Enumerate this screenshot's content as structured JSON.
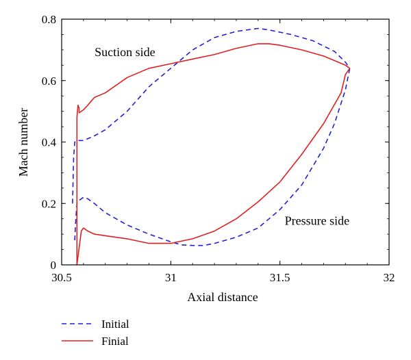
{
  "chart_data": {
    "type": "line",
    "xlabel": "Axial distance",
    "ylabel": "Mach number",
    "xlim": [
      30.5,
      32
    ],
    "ylim": [
      0,
      0.8
    ],
    "xticks": [
      30.5,
      31,
      31.5,
      32
    ],
    "xtick_labels": [
      "30.5",
      "31",
      "31.5",
      "32"
    ],
    "yticks": [
      0,
      0.2,
      0.4,
      0.6,
      0.8
    ],
    "ytick_labels": [
      "0",
      "0.2",
      "0.4",
      "0.6",
      "0.8"
    ],
    "grid": false,
    "legend_position": "bottom-left, below plot",
    "annotations": [
      {
        "text": "Suction side",
        "x": 30.79,
        "y": 0.68
      },
      {
        "text": "Pressure side",
        "x": 31.67,
        "y": 0.13
      }
    ],
    "series": [
      {
        "name": "Initial",
        "color": "#1f1fdc",
        "dash": "dashed",
        "segments": [
          {
            "x": [
              30.55,
              30.555,
              30.56,
              30.57,
              30.6,
              30.65,
              30.7,
              30.8,
              30.9,
              31.0,
              31.1,
              31.2,
              31.3,
              31.4,
              31.45,
              31.55,
              31.65,
              31.75,
              31.8,
              31.82
            ],
            "y": [
              0.2,
              0.35,
              0.4,
              0.405,
              0.405,
              0.42,
              0.44,
              0.5,
              0.58,
              0.64,
              0.7,
              0.74,
              0.76,
              0.77,
              0.765,
              0.75,
              0.73,
              0.695,
              0.66,
              0.64
            ]
          },
          {
            "x": [
              30.56,
              30.565,
              30.57,
              30.58,
              30.6,
              30.62,
              30.65,
              30.7,
              30.8,
              30.9,
              31.0,
              31.05,
              31.1,
              31.15,
              31.2,
              31.3,
              31.4,
              31.5,
              31.6,
              31.7,
              31.75,
              31.8,
              31.82
            ],
            "y": [
              0.08,
              0.15,
              0.2,
              0.21,
              0.22,
              0.215,
              0.2,
              0.17,
              0.13,
              0.1,
              0.075,
              0.065,
              0.063,
              0.063,
              0.07,
              0.09,
              0.12,
              0.18,
              0.26,
              0.38,
              0.46,
              0.57,
              0.64
            ]
          }
        ]
      },
      {
        "name": "Finial",
        "color": "#e0201f",
        "dash": "solid",
        "segments": [
          {
            "x": [
              30.57,
              30.57,
              30.575,
              30.58,
              30.58,
              30.6,
              30.62,
              30.65,
              30.7,
              30.8,
              30.9,
              31.0,
              31.1,
              31.2,
              31.3,
              31.4,
              31.45,
              31.5,
              31.6,
              31.7,
              31.8,
              31.82
            ],
            "y": [
              0.0,
              0.48,
              0.52,
              0.51,
              0.495,
              0.505,
              0.52,
              0.545,
              0.56,
              0.61,
              0.64,
              0.655,
              0.67,
              0.685,
              0.705,
              0.72,
              0.72,
              0.715,
              0.7,
              0.68,
              0.65,
              0.64
            ]
          },
          {
            "x": [
              30.57,
              30.59,
              30.6,
              30.62,
              30.65,
              30.7,
              30.8,
              30.9,
              31.0,
              31.1,
              31.2,
              31.3,
              31.4,
              31.5,
              31.6,
              31.7,
              31.78,
              31.8,
              31.82
            ],
            "y": [
              0.0,
              0.11,
              0.12,
              0.11,
              0.1,
              0.095,
              0.085,
              0.07,
              0.07,
              0.085,
              0.11,
              0.15,
              0.205,
              0.27,
              0.36,
              0.46,
              0.56,
              0.62,
              0.64
            ]
          }
        ]
      }
    ]
  }
}
